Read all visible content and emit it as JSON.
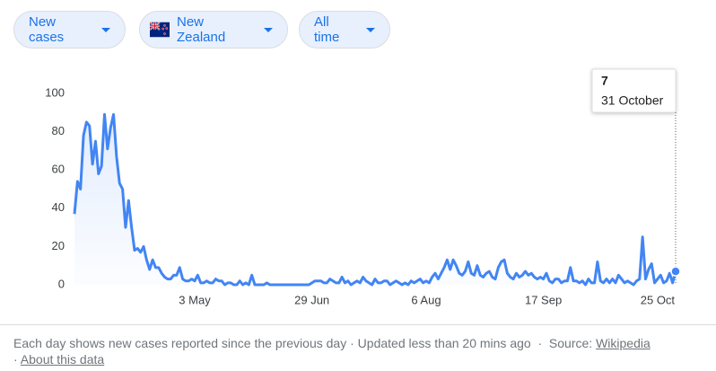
{
  "controls": {
    "metric": "New cases",
    "location": "New Zealand",
    "period": "All time"
  },
  "chart_data": {
    "type": "line",
    "series": [
      {
        "name": "New cases",
        "color": "#4285f4",
        "values": [
          37,
          54,
          50,
          78,
          85,
          83,
          63,
          75,
          58,
          62,
          89,
          71,
          82,
          89,
          67,
          53,
          50,
          30,
          44,
          30,
          18,
          19,
          17,
          20,
          13,
          8,
          13,
          9,
          9,
          6,
          4,
          3,
          3,
          5,
          5,
          9,
          3,
          2,
          2,
          3,
          2,
          5,
          1,
          1,
          2,
          1,
          1,
          3,
          2,
          2,
          0,
          1,
          1,
          0,
          0,
          2,
          0,
          1,
          0,
          5,
          0,
          0,
          0,
          0,
          1,
          0,
          0,
          0,
          0,
          0,
          0,
          0,
          0,
          0,
          0,
          0,
          0,
          0,
          0,
          1,
          2,
          2,
          2,
          1,
          1,
          3,
          2,
          1,
          1,
          4,
          1,
          2,
          0,
          1,
          2,
          1,
          4,
          2,
          1,
          0,
          3,
          1,
          1,
          2,
          2,
          0,
          1,
          2,
          1,
          0,
          1,
          0,
          2,
          1,
          2,
          3,
          1,
          2,
          1,
          4,
          6,
          3,
          6,
          9,
          13,
          8,
          13,
          10,
          6,
          5,
          7,
          12,
          6,
          5,
          10,
          5,
          4,
          6,
          7,
          4,
          3,
          9,
          12,
          13,
          6,
          4,
          3,
          6,
          4,
          5,
          7,
          5,
          6,
          4,
          3,
          4,
          3,
          6,
          2,
          1,
          3,
          3,
          1,
          2,
          2,
          9,
          2,
          2,
          1,
          2,
          0,
          3,
          1,
          1,
          12,
          2,
          1,
          3,
          1,
          3,
          1,
          5,
          3,
          1,
          2,
          1,
          0,
          2,
          3,
          25,
          3,
          8,
          11,
          1,
          3,
          5,
          1,
          2,
          6,
          1,
          7
        ]
      }
    ],
    "xlim": [
      0,
      200
    ],
    "xticks": [
      {
        "value": 40,
        "label": "3 May"
      },
      {
        "value": 79,
        "label": "29 Jun"
      },
      {
        "value": 117,
        "label": "6 Aug"
      },
      {
        "value": 156,
        "label": "17 Sep"
      },
      {
        "value": 194,
        "label": "25 Oct"
      }
    ],
    "ylim": [
      0,
      100
    ],
    "yticks": [
      0,
      20,
      40,
      60,
      80,
      100
    ],
    "grid": false,
    "tooltip": {
      "date": "31 October"
    }
  },
  "footer": {
    "description": "Each day shows new cases reported since the previous day",
    "updated": "Updated less than 20 mins ago",
    "source_label": "Source:",
    "source_link": "Wikipedia",
    "about": "About this data"
  }
}
